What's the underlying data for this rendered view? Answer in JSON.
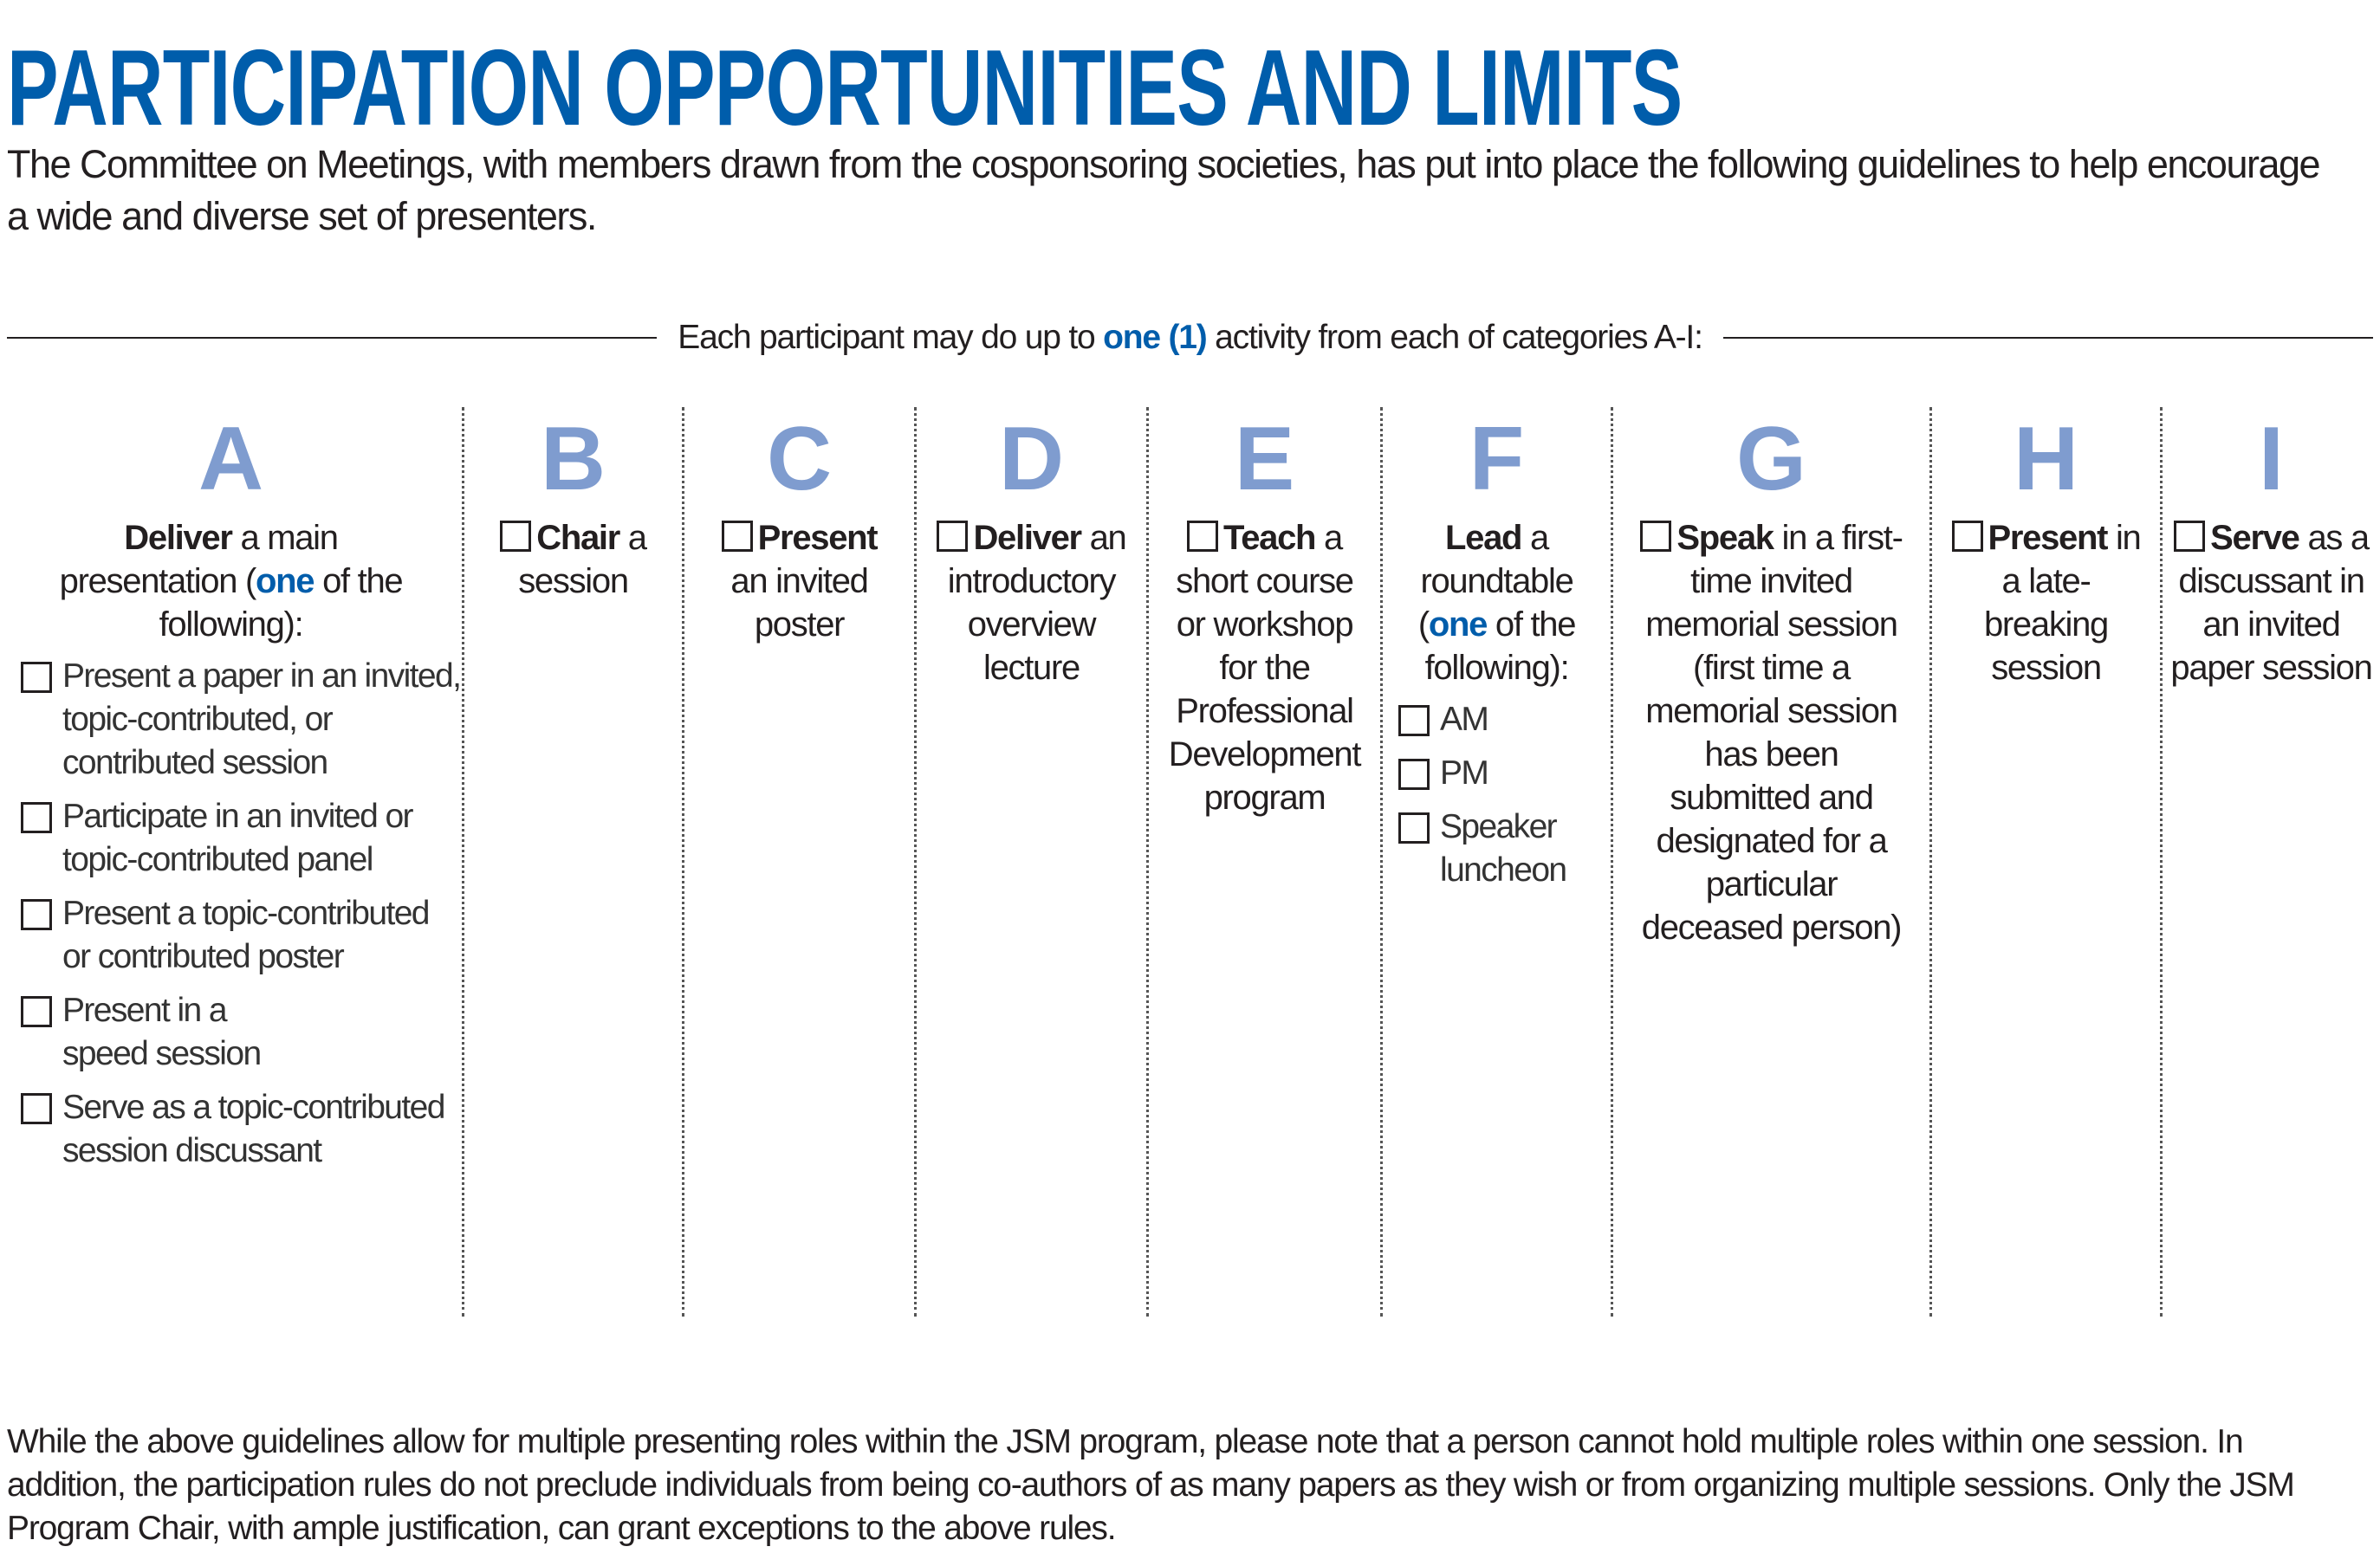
{
  "title": "PARTICIPATION OPPORTUNITIES AND LIMITS",
  "intro": "The Committee on Meetings, with members drawn from the cosponsoring societies, has put into place the following guidelines to help encourage a wide and diverse set of presenters.",
  "rule": {
    "before": "Each participant may do up to ",
    "highlight": "one (1)",
    "after": " activity from each of categories A-I:"
  },
  "colors": {
    "title": "#005dab",
    "letters": "#7f9ccf",
    "highlight": "#005dab"
  },
  "columns": [
    {
      "letter": "A",
      "bold": "Deliver",
      "text": " a main presentation (",
      "highlight": "one",
      "text2": " of the following):",
      "options": [
        "Present a paper in an invited, topic-contributed, or contributed session",
        "Participate in an invited or topic-contributed panel",
        "Present a topic-contributed or contributed poster",
        "Present in a speed session",
        "Serve as a topic-contributed session discussant"
      ]
    },
    {
      "letter": "B",
      "bold": "Chair",
      "text": " a session"
    },
    {
      "letter": "C",
      "bold": "Present",
      "text": " an invited poster"
    },
    {
      "letter": "D",
      "bold": "Deliver",
      "text": " an introductory overview lecture"
    },
    {
      "letter": "E",
      "bold": "Teach",
      "text": " a short course or workshop for the Professional Development program"
    },
    {
      "letter": "F",
      "bold": "Lead",
      "text": " a roundtable (",
      "highlight": "one",
      "text2": " of the following):",
      "options": [
        "AM",
        "PM",
        "Speaker luncheon"
      ]
    },
    {
      "letter": "G",
      "bold": "Speak",
      "text": " in a first-time invited memorial session (first time a memorial session has been submitted and designated for a particular deceased person)"
    },
    {
      "letter": "H",
      "bold": "Present",
      "text": " in a late-breaking session"
    },
    {
      "letter": "I",
      "bold": "Serve",
      "text": " as a discussant in an invited paper session"
    }
  ],
  "footer": "While the above guidelines allow for multiple presenting roles within the JSM program, please note that a person cannot hold multiple roles within one session. In addition, the participation rules do not preclude individuals from being co-authors of as many papers as they wish or from organizing multiple sessions. Only the JSM Program Chair, with ample justification, can grant exceptions to the above rules."
}
